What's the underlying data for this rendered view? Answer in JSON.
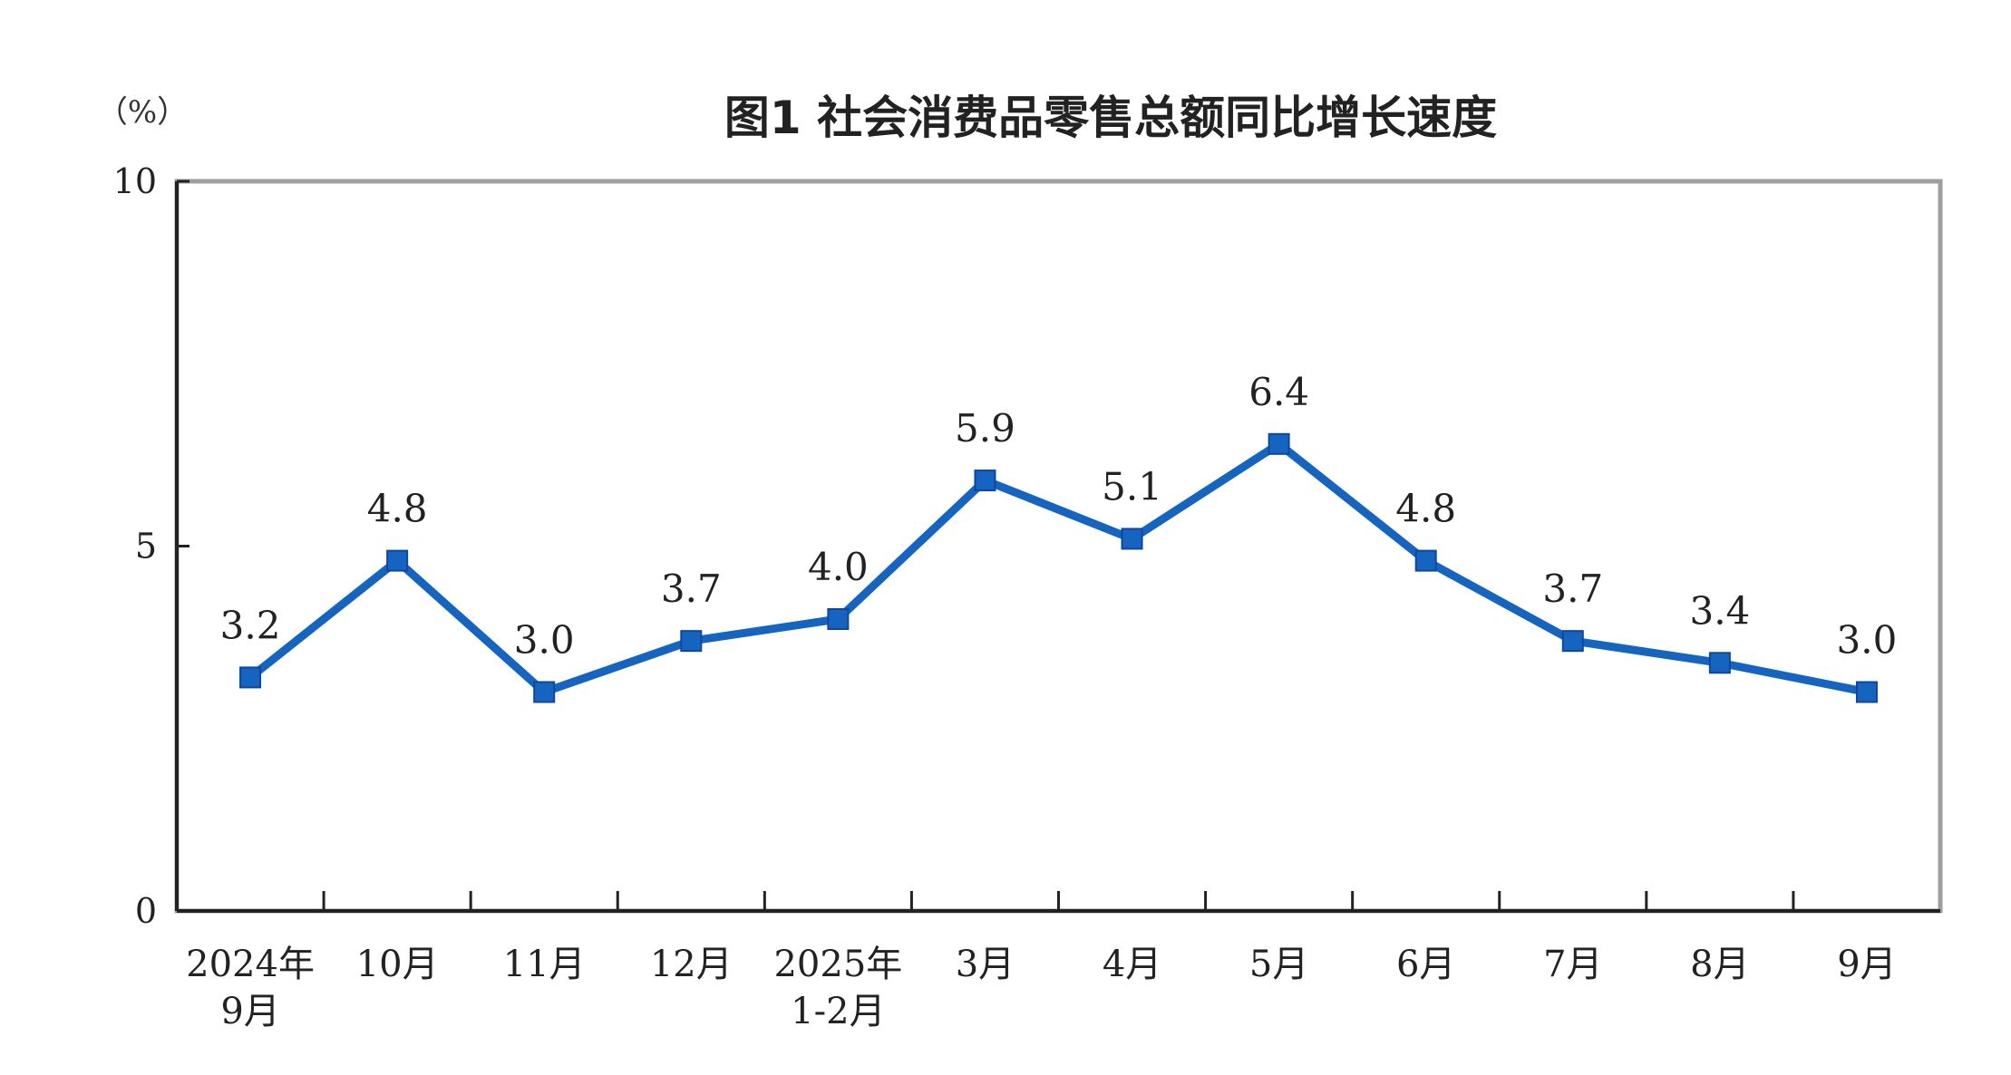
{
  "chart_data": {
    "type": "line",
    "title": "图1  社会消费品零售总额同比增长速度",
    "unit": "（%）",
    "ylim": [
      0,
      10
    ],
    "yticks": [
      "0",
      "5",
      "10"
    ],
    "categories": [
      [
        "2024年",
        "9月"
      ],
      [
        "10月"
      ],
      [
        "11月"
      ],
      [
        "12月"
      ],
      [
        "2025年",
        "1-2月"
      ],
      [
        "3月"
      ],
      [
        "4月"
      ],
      [
        "5月"
      ],
      [
        "6月"
      ],
      [
        "7月"
      ],
      [
        "8月"
      ],
      [
        "9月"
      ]
    ],
    "series": [
      {
        "values": [
          3.2,
          4.8,
          3.0,
          3.7,
          4.0,
          5.9,
          5.1,
          6.4,
          4.8,
          3.7,
          3.4,
          3.0
        ],
        "labels": [
          "3.2",
          "4.8",
          "3.0",
          "3.7",
          "4.0",
          "5.9",
          "5.1",
          "6.4",
          "4.8",
          "3.7",
          "3.4",
          "3.0"
        ],
        "color": "#1565C0"
      }
    ],
    "grid": false,
    "legend": "none"
  }
}
